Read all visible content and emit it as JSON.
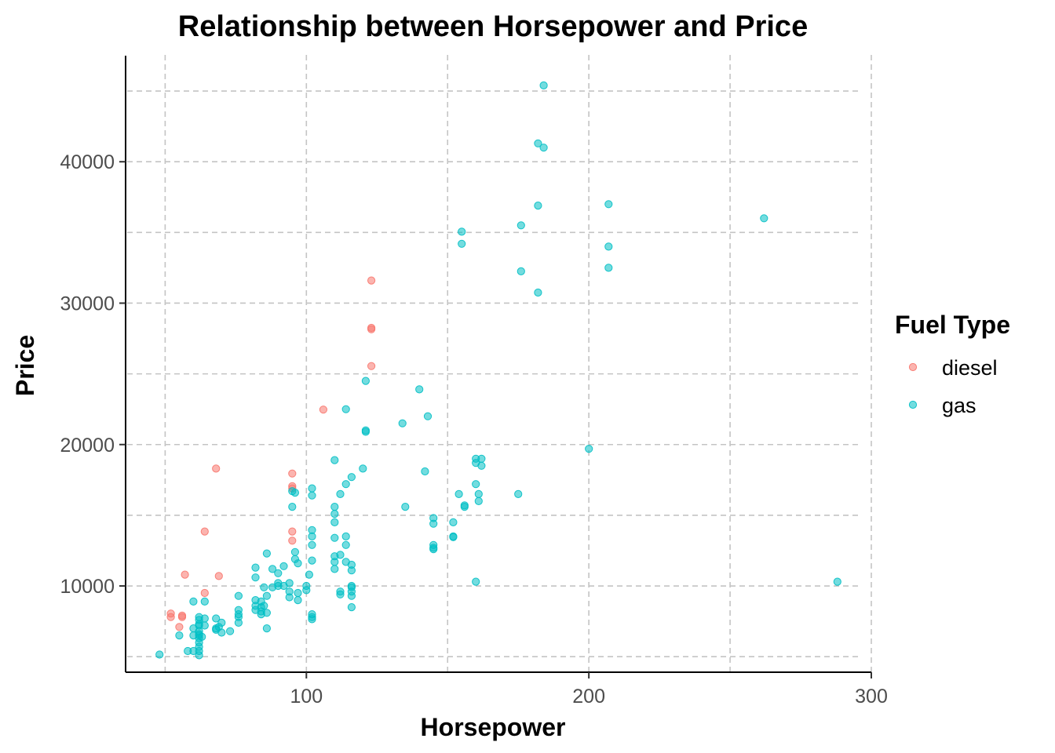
{
  "chart_data": {
    "type": "scatter",
    "title": "Relationship between Horsepower and Price",
    "xlabel": "Horsepower",
    "ylabel": "Price",
    "xlim": [
      36,
      300
    ],
    "ylim": [
      3900,
      47500
    ],
    "x_ticks": [
      100,
      200,
      300
    ],
    "y_ticks": [
      10000,
      20000,
      30000,
      40000
    ],
    "x_minor_gridlines": [
      50,
      150,
      250
    ],
    "y_minor_gridlines": [
      5000,
      15000,
      25000,
      35000,
      45000
    ],
    "grid": true,
    "legend": {
      "title": "Fuel Type",
      "position": "right"
    },
    "series": [
      {
        "name": "diesel",
        "color": "#F8766D",
        "points": [
          [
            52,
            7800
          ],
          [
            52,
            8050
          ],
          [
            55,
            7100
          ],
          [
            56,
            7900
          ],
          [
            56,
            7800
          ],
          [
            57,
            10800
          ],
          [
            64,
            13850
          ],
          [
            64,
            9500
          ],
          [
            68,
            18300
          ],
          [
            69,
            10700
          ],
          [
            95,
            17950
          ],
          [
            95,
            17050
          ],
          [
            95,
            16900
          ],
          [
            95,
            13850
          ],
          [
            95,
            13200
          ],
          [
            106,
            22470
          ],
          [
            123,
            31600
          ],
          [
            123,
            28250
          ],
          [
            123,
            28150
          ],
          [
            123,
            25550
          ]
        ]
      },
      {
        "name": "gas",
        "color": "#00BFC4",
        "points": [
          [
            48,
            5150
          ],
          [
            55,
            6500
          ],
          [
            58,
            5400
          ],
          [
            60,
            5400
          ],
          [
            60,
            8900
          ],
          [
            60,
            7000
          ],
          [
            60,
            6500
          ],
          [
            62,
            6300
          ],
          [
            62,
            6600
          ],
          [
            62,
            5100
          ],
          [
            62,
            5400
          ],
          [
            62,
            6800
          ],
          [
            62,
            7300
          ],
          [
            62,
            7600
          ],
          [
            62,
            7800
          ],
          [
            62,
            6000
          ],
          [
            62,
            5700
          ],
          [
            62,
            7200
          ],
          [
            62,
            6500
          ],
          [
            63,
            6400
          ],
          [
            64,
            7700
          ],
          [
            64,
            8900
          ],
          [
            64,
            7200
          ],
          [
            68,
            6900
          ],
          [
            68,
            7000
          ],
          [
            68,
            7700
          ],
          [
            69,
            7100
          ],
          [
            70,
            7400
          ],
          [
            70,
            6700
          ],
          [
            73,
            6800
          ],
          [
            76,
            7400
          ],
          [
            76,
            7800
          ],
          [
            76,
            8000
          ],
          [
            76,
            8300
          ],
          [
            76,
            9300
          ],
          [
            82,
            8300
          ],
          [
            82,
            9000
          ],
          [
            82,
            8600
          ],
          [
            82,
            10600
          ],
          [
            82,
            11300
          ],
          [
            84,
            8900
          ],
          [
            84,
            8500
          ],
          [
            84,
            8200
          ],
          [
            84,
            8000
          ],
          [
            85,
            9900
          ],
          [
            85,
            8600
          ],
          [
            86,
            9300
          ],
          [
            86,
            8100
          ],
          [
            86,
            7000
          ],
          [
            86,
            12300
          ],
          [
            88,
            9900
          ],
          [
            88,
            11200
          ],
          [
            90,
            10000
          ],
          [
            90,
            10200
          ],
          [
            90,
            10900
          ],
          [
            92,
            10000
          ],
          [
            92,
            11400
          ],
          [
            94,
            9200
          ],
          [
            94,
            9600
          ],
          [
            94,
            10200
          ],
          [
            95,
            16700
          ],
          [
            95,
            15600
          ],
          [
            96,
            16600
          ],
          [
            96,
            11900
          ],
          [
            96,
            12400
          ],
          [
            97,
            9500
          ],
          [
            97,
            9000
          ],
          [
            97,
            11600
          ],
          [
            100,
            10000
          ],
          [
            100,
            9700
          ],
          [
            101,
            10800
          ],
          [
            102,
            16900
          ],
          [
            102,
            16400
          ],
          [
            102,
            11800
          ],
          [
            102,
            13500
          ],
          [
            102,
            12900
          ],
          [
            102,
            13950
          ],
          [
            102,
            8000
          ],
          [
            102,
            7800
          ],
          [
            102,
            7650
          ],
          [
            110,
            18900
          ],
          [
            110,
            15600
          ],
          [
            110,
            15100
          ],
          [
            110,
            14500
          ],
          [
            110,
            12100
          ],
          [
            110,
            11700
          ],
          [
            110,
            11200
          ],
          [
            110,
            13400
          ],
          [
            112,
            12200
          ],
          [
            112,
            16500
          ],
          [
            112,
            9400
          ],
          [
            112,
            9600
          ],
          [
            114,
            22500
          ],
          [
            114,
            17200
          ],
          [
            114,
            13500
          ],
          [
            114,
            12900
          ],
          [
            114,
            11700
          ],
          [
            116,
            17700
          ],
          [
            116,
            11500
          ],
          [
            116,
            11100
          ],
          [
            116,
            10000
          ],
          [
            116,
            9900
          ],
          [
            116,
            9600
          ],
          [
            116,
            9300
          ],
          [
            116,
            8500
          ],
          [
            120,
            18300
          ],
          [
            121,
            24500
          ],
          [
            121,
            21000
          ],
          [
            121,
            20900
          ],
          [
            134,
            21500
          ],
          [
            135,
            15600
          ],
          [
            140,
            23900
          ],
          [
            142,
            18100
          ],
          [
            143,
            22000
          ],
          [
            145,
            14800
          ],
          [
            145,
            14400
          ],
          [
            145,
            12900
          ],
          [
            145,
            12700
          ],
          [
            145,
            12600
          ],
          [
            152,
            14500
          ],
          [
            152,
            13500
          ],
          [
            152,
            13450
          ],
          [
            154,
            16500
          ],
          [
            155,
            35050
          ],
          [
            155,
            34200
          ],
          [
            156,
            15700
          ],
          [
            156,
            15600
          ],
          [
            160,
            19000
          ],
          [
            160,
            18700
          ],
          [
            160,
            17200
          ],
          [
            160,
            10300
          ],
          [
            161,
            16500
          ],
          [
            161,
            16000
          ],
          [
            162,
            19000
          ],
          [
            162,
            18500
          ],
          [
            175,
            16500
          ],
          [
            176,
            35500
          ],
          [
            176,
            32250
          ],
          [
            182,
            41300
          ],
          [
            182,
            36900
          ],
          [
            182,
            30750
          ],
          [
            184,
            45400
          ],
          [
            184,
            41000
          ],
          [
            200,
            19700
          ],
          [
            207,
            37000
          ],
          [
            207,
            34000
          ],
          [
            207,
            32500
          ],
          [
            262,
            36000
          ],
          [
            288,
            10300
          ]
        ]
      }
    ]
  }
}
